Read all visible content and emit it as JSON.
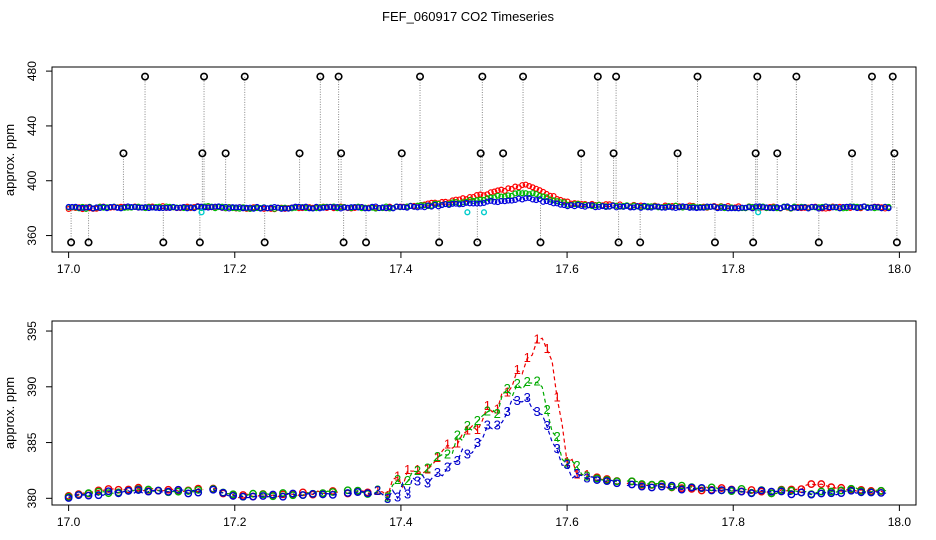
{
  "chart_data": [
    {
      "type": "scatter",
      "title": "FEF_060917  CO2 Timeseries",
      "xlabel": "",
      "ylabel": "approx. ppm",
      "xlim": [
        16.98,
        18.02
      ],
      "ylim": [
        348,
        483
      ],
      "xticks": [
        17.0,
        17.2,
        17.4,
        17.6,
        17.8,
        18.0
      ],
      "xtick_labels": [
        "17.0",
        "17.2",
        "17.4",
        "17.6",
        "17.8",
        "18.0"
      ],
      "yticks": [
        360,
        400,
        440,
        480
      ],
      "ytick_labels": [
        "360",
        "400",
        "440",
        "480"
      ],
      "raw_spikes": [
        {
          "x": 17.003,
          "y": 355
        },
        {
          "x": 17.024,
          "y": 355
        },
        {
          "x": 17.066,
          "y": 420
        },
        {
          "x": 17.092,
          "y": 476
        },
        {
          "x": 17.114,
          "y": 355
        },
        {
          "x": 17.158,
          "y": 355
        },
        {
          "x": 17.161,
          "y": 420
        },
        {
          "x": 17.163,
          "y": 476
        },
        {
          "x": 17.189,
          "y": 420
        },
        {
          "x": 17.212,
          "y": 476
        },
        {
          "x": 17.236,
          "y": 355
        },
        {
          "x": 17.278,
          "y": 420
        },
        {
          "x": 17.303,
          "y": 476
        },
        {
          "x": 17.325,
          "y": 476
        },
        {
          "x": 17.328,
          "y": 420
        },
        {
          "x": 17.331,
          "y": 355
        },
        {
          "x": 17.358,
          "y": 355
        },
        {
          "x": 17.401,
          "y": 420
        },
        {
          "x": 17.423,
          "y": 476
        },
        {
          "x": 17.446,
          "y": 355
        },
        {
          "x": 17.492,
          "y": 355
        },
        {
          "x": 17.496,
          "y": 420
        },
        {
          "x": 17.498,
          "y": 476
        },
        {
          "x": 17.523,
          "y": 420
        },
        {
          "x": 17.547,
          "y": 476
        },
        {
          "x": 17.568,
          "y": 355
        },
        {
          "x": 17.617,
          "y": 420
        },
        {
          "x": 17.637,
          "y": 476
        },
        {
          "x": 17.656,
          "y": 420
        },
        {
          "x": 17.659,
          "y": 476
        },
        {
          "x": 17.662,
          "y": 355
        },
        {
          "x": 17.688,
          "y": 355
        },
        {
          "x": 17.733,
          "y": 420
        },
        {
          "x": 17.757,
          "y": 476
        },
        {
          "x": 17.778,
          "y": 355
        },
        {
          "x": 17.824,
          "y": 355
        },
        {
          "x": 17.827,
          "y": 420
        },
        {
          "x": 17.829,
          "y": 476
        },
        {
          "x": 17.853,
          "y": 420
        },
        {
          "x": 17.876,
          "y": 476
        },
        {
          "x": 17.903,
          "y": 355
        },
        {
          "x": 17.943,
          "y": 420
        },
        {
          "x": 17.967,
          "y": 476
        },
        {
          "x": 17.992,
          "y": 476
        },
        {
          "x": 17.994,
          "y": 420
        },
        {
          "x": 17.997,
          "y": 355
        }
      ],
      "series": [
        {
          "name": "1",
          "color": "#ff0000"
        },
        {
          "name": "2",
          "color": "#00bb00"
        },
        {
          "name": "3",
          "color": "#0000dd"
        },
        {
          "name": "4",
          "color": "#00cccc"
        }
      ]
    },
    {
      "type": "line",
      "title": "",
      "xlabel": "",
      "ylabel": "approx. ppm",
      "xlim": [
        16.98,
        18.02
      ],
      "ylim": [
        379.4,
        395.9
      ],
      "xticks": [
        17.0,
        17.2,
        17.4,
        17.6,
        17.8,
        18.0
      ],
      "xtick_labels": [
        "17.0",
        "17.2",
        "17.4",
        "17.6",
        "17.8",
        "18.0"
      ],
      "yticks": [
        380,
        385,
        390,
        395
      ],
      "ytick_labels": [
        "380",
        "385",
        "390",
        "395"
      ],
      "x": [
        17.0,
        17.05,
        17.1,
        17.15,
        17.17,
        17.2,
        17.25,
        17.3,
        17.33,
        17.38,
        17.4,
        17.43,
        17.46,
        17.49,
        17.51,
        17.53,
        17.55,
        17.57,
        17.58,
        17.59,
        17.6,
        17.62,
        17.65,
        17.67,
        17.7,
        17.75,
        17.8,
        17.85,
        17.9,
        17.95,
        17.98
      ],
      "gaps_after": [
        17.165,
        17.325,
        17.665
      ],
      "series": [
        {
          "name": "1",
          "color": "#ee0000",
          "label": "1",
          "values": [
            380.3,
            380.9,
            380.8,
            380.6,
            381.0,
            380.2,
            380.3,
            380.5,
            380.5,
            380.5,
            381.5,
            382.8,
            384.3,
            386.5,
            388.0,
            390.0,
            392.0,
            394.8,
            393.0,
            388.0,
            383.5,
            382.0,
            381.8,
            381.4,
            381.2,
            380.9,
            380.7,
            380.5,
            381.2,
            380.6,
            380.5
          ]
        },
        {
          "name": "2",
          "color": "#00aa00",
          "label": "2",
          "values": [
            380.2,
            380.6,
            380.7,
            380.7,
            380.9,
            380.3,
            380.3,
            380.5,
            380.6,
            380.5,
            381.0,
            383.0,
            384.5,
            386.5,
            387.5,
            389.5,
            390.5,
            389.5,
            387.0,
            385.0,
            383.0,
            382.0,
            381.7,
            381.5,
            381.3,
            381.0,
            380.7,
            380.6,
            380.5,
            380.8,
            380.6
          ]
        },
        {
          "name": "3",
          "color": "#0000cc",
          "label": "3",
          "values": [
            380.1,
            380.5,
            380.6,
            380.6,
            380.8,
            380.2,
            380.2,
            380.4,
            380.5,
            380.4,
            380.7,
            381.8,
            383.0,
            385.0,
            386.5,
            388.0,
            389.5,
            387.5,
            385.5,
            384.0,
            382.5,
            381.9,
            381.6,
            381.3,
            381.1,
            380.9,
            380.6,
            380.5,
            380.4,
            380.6,
            380.5
          ]
        }
      ]
    }
  ]
}
